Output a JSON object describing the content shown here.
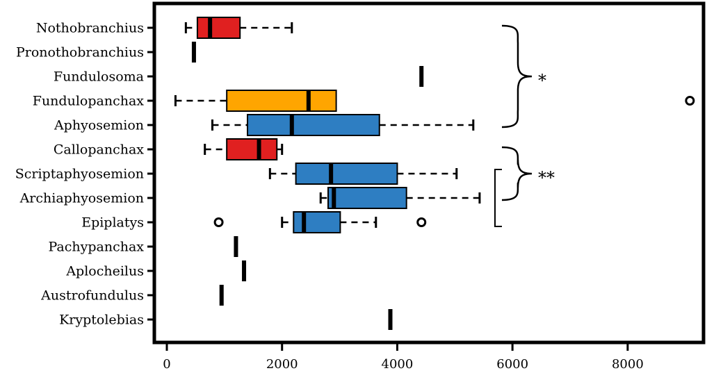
{
  "chart_data": {
    "type": "boxplot",
    "orientation": "horizontal",
    "xlim": [
      -200,
      9350
    ],
    "xticks": [
      0,
      2000,
      4000,
      6000,
      8000
    ],
    "xtick_labels": [
      "0",
      "2000",
      "4000",
      "6000",
      "8000"
    ],
    "grid": false,
    "colors": {
      "red": "#e02020",
      "orange": "#ffa500",
      "blue": "#2e7ec2"
    },
    "categories": [
      {
        "name": "Nothobranchius",
        "color": "red",
        "min": 330,
        "q1": 530,
        "median": 750,
        "q3": 1270,
        "max": 2170,
        "outliers": []
      },
      {
        "name": "Pronothobranchius",
        "single": 470
      },
      {
        "name": "Fundulosoma",
        "single": 4420
      },
      {
        "name": "Fundulopanchax",
        "color": "orange",
        "min": 150,
        "q1": 1040,
        "median": 2460,
        "q3": 2940,
        "max": 2940,
        "outliers": [
          9080
        ]
      },
      {
        "name": "Aphyosemion",
        "color": "blue",
        "min": 790,
        "q1": 1400,
        "median": 2170,
        "q3": 3690,
        "max": 5320,
        "outliers": []
      },
      {
        "name": "Callopanchax",
        "color": "red",
        "min": 660,
        "q1": 1040,
        "median": 1600,
        "q3": 1910,
        "max": 2000,
        "outliers": []
      },
      {
        "name": "Scriptaphyosemion",
        "color": "blue",
        "min": 1790,
        "q1": 2240,
        "median": 2850,
        "q3": 4000,
        "max": 5030,
        "outliers": []
      },
      {
        "name": "Archiaphyosemion",
        "color": "blue",
        "min": 2670,
        "q1": 2800,
        "median": 2900,
        "q3": 4160,
        "max": 5430,
        "outliers": []
      },
      {
        "name": "Epiplatys",
        "color": "blue",
        "min": 2000,
        "q1": 2200,
        "median": 2380,
        "q3": 3010,
        "max": 3630,
        "outliers": [
          900,
          4420
        ]
      },
      {
        "name": "Pachypanchax",
        "single": 1200
      },
      {
        "name": "Aplocheilus",
        "single": 1340
      },
      {
        "name": "Austrofundulus",
        "single": 950
      },
      {
        "name": "Kryptolebias",
        "single": 3880
      }
    ],
    "annotations": [
      {
        "text": "*",
        "type": "brace",
        "from": "Nothobranchius",
        "to": "Aphyosemion"
      },
      {
        "text": "**",
        "type": "brace",
        "from": "Callopanchax",
        "to": "Archiaphyosemion"
      },
      {
        "text": "",
        "type": "bracket",
        "from": "Scriptaphyosemion",
        "to": "Epiplatys"
      }
    ]
  }
}
